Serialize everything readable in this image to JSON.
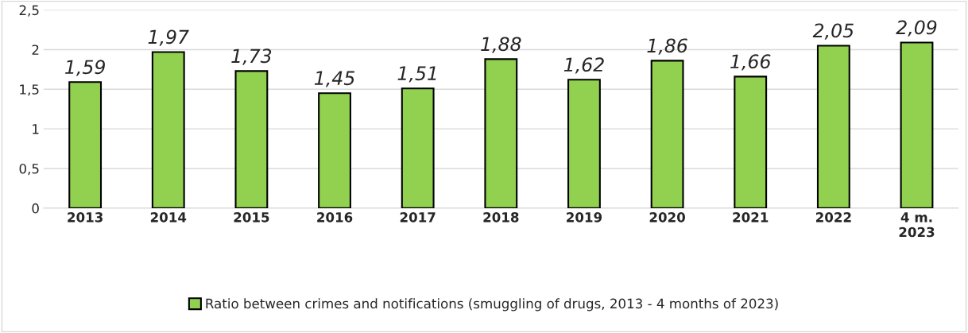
{
  "chart_data": {
    "type": "bar",
    "categories": [
      "2013",
      "2014",
      "2015",
      "2016",
      "2017",
      "2018",
      "2019",
      "2020",
      "2021",
      "2022",
      "4 m.\n2023"
    ],
    "series": [
      {
        "name": "Ratio between crimes and notifications (smuggling of drugs, 2013 - 4 months of 2023)",
        "color": "#92d050",
        "values": [
          1.59,
          1.97,
          1.73,
          1.45,
          1.51,
          1.88,
          1.62,
          1.86,
          1.66,
          2.05,
          2.09
        ],
        "value_labels": [
          "1,59",
          "1,97",
          "1,73",
          "1,45",
          "1,51",
          "1,88",
          "1,62",
          "1,86",
          "1,66",
          "2,05",
          "2,09"
        ]
      }
    ],
    "ylim": [
      0,
      2.5
    ],
    "yticks": [
      0,
      {
        "value": 0.5,
        "label": "0,5"
      },
      1,
      {
        "value": 1.5,
        "label": "1,5"
      },
      2,
      {
        "value": 2.5,
        "label": "2,5"
      }
    ],
    "grid": "y",
    "legend": "bottom"
  }
}
